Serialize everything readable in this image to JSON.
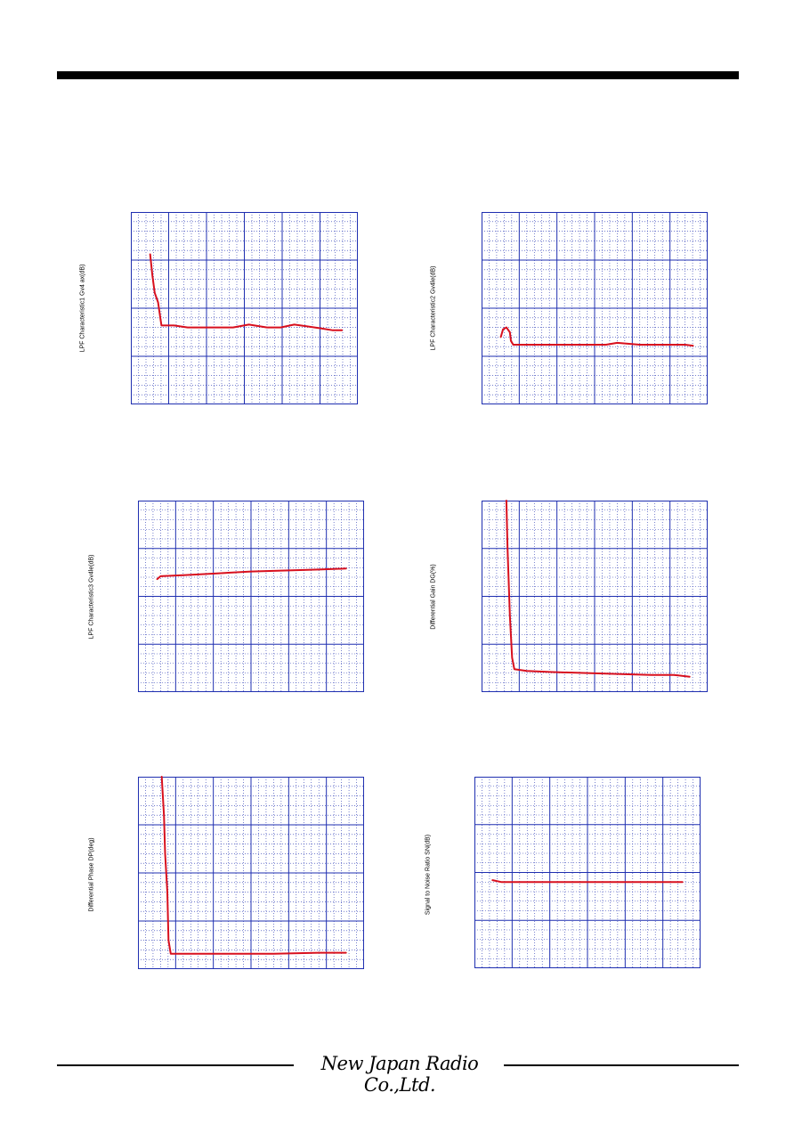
{
  "footer": {
    "logo_text": "New Japan Radio Co.,Ltd."
  },
  "chart_data": [
    {
      "type": "line",
      "ylabel": "LPF Characteristic1 Gv4 ax(dB)",
      "xlim": [
        0,
        10
      ],
      "ylim": [
        0,
        10
      ],
      "grid": true,
      "major_x": 6,
      "major_y": 4,
      "minor": 5,
      "series": [
        {
          "color": "#d8101e",
          "x": [
            0.85,
            0.95,
            1.05,
            1.2,
            1.3,
            1.35,
            1.5,
            1.9,
            2.5,
            3.5,
            4.5,
            5.2,
            6.0,
            6.6,
            7.2,
            7.8,
            8.4,
            8.9,
            9.3
          ],
          "y": [
            7.8,
            6.7,
            5.8,
            5.3,
            4.5,
            4.1,
            4.1,
            4.1,
            4.0,
            4.0,
            4.0,
            4.15,
            4.0,
            4.0,
            4.15,
            4.05,
            3.95,
            3.85,
            3.85
          ]
        }
      ]
    },
    {
      "type": "line",
      "ylabel": "LPF Characteristic2 Gv4le(dB)",
      "xlim": [
        0,
        10
      ],
      "ylim": [
        0,
        10
      ],
      "grid": true,
      "major_x": 6,
      "major_y": 4,
      "minor": 5,
      "series": [
        {
          "color": "#d8101e",
          "x": [
            0.85,
            0.95,
            1.1,
            1.25,
            1.3,
            1.4,
            2.5,
            4.5,
            5.5,
            6.0,
            7.0,
            8.0,
            9.0,
            9.35
          ],
          "y": [
            3.5,
            3.9,
            4.0,
            3.75,
            3.3,
            3.1,
            3.1,
            3.1,
            3.1,
            3.2,
            3.1,
            3.1,
            3.1,
            3.05
          ]
        }
      ]
    },
    {
      "type": "line",
      "ylabel": "LPF Characteristic3 Gv4le(dB)",
      "xlim": [
        0,
        10
      ],
      "ylim": [
        0,
        10
      ],
      "grid": true,
      "major_x": 6,
      "major_y": 4,
      "minor": 5,
      "series": [
        {
          "color": "#d8101e",
          "x": [
            0.85,
            1.0,
            2.0,
            3.5,
            5.0,
            6.5,
            8.0,
            9.2
          ],
          "y": [
            5.9,
            6.05,
            6.1,
            6.2,
            6.3,
            6.35,
            6.4,
            6.45
          ]
        }
      ]
    },
    {
      "type": "line",
      "ylabel": "Differential Gain DG(%)",
      "xlim": [
        0,
        10
      ],
      "ylim": [
        0,
        10
      ],
      "grid": true,
      "major_x": 6,
      "major_y": 4,
      "minor": 5,
      "series": [
        {
          "color": "#d8101e",
          "x": [
            1.1,
            1.15,
            1.25,
            1.35,
            1.45,
            2.0,
            3.0,
            4.5,
            6.0,
            7.5,
            8.5,
            9.2
          ],
          "y": [
            10.0,
            7.5,
            4.0,
            1.8,
            1.2,
            1.1,
            1.05,
            1.0,
            0.95,
            0.9,
            0.9,
            0.8
          ]
        }
      ]
    },
    {
      "type": "line",
      "ylabel": "Differential Phase DP(deg)",
      "xlim": [
        0,
        10
      ],
      "ylim": [
        0,
        10
      ],
      "grid": true,
      "major_x": 6,
      "major_y": 4,
      "minor": 5,
      "series": [
        {
          "color": "#d8101e",
          "x": [
            1.05,
            1.15,
            1.2,
            1.3,
            1.35,
            1.45,
            2.0,
            4.0,
            6.0,
            8.0,
            9.2
          ],
          "y": [
            10.0,
            8.0,
            6.0,
            4.0,
            1.5,
            0.8,
            0.8,
            0.8,
            0.8,
            0.85,
            0.85
          ]
        }
      ]
    },
    {
      "type": "line",
      "ylabel": "Signal to Noise Ratio SN(dB)",
      "xlim": [
        0,
        10
      ],
      "ylim": [
        0,
        10
      ],
      "grid": true,
      "major_x": 6,
      "major_y": 4,
      "minor": 5,
      "series": [
        {
          "color": "#d8101e",
          "x": [
            0.8,
            1.2,
            2.5,
            4.0,
            5.5,
            7.0,
            8.5,
            9.2
          ],
          "y": [
            4.6,
            4.5,
            4.5,
            4.5,
            4.5,
            4.5,
            4.5,
            4.5
          ]
        }
      ]
    }
  ]
}
